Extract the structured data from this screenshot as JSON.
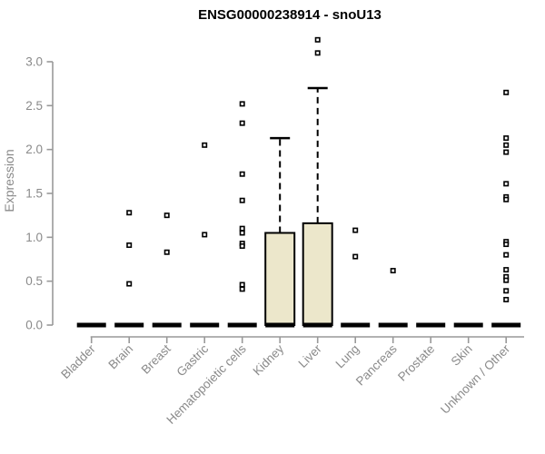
{
  "page": {
    "background_color": "#ffffff"
  },
  "chart_data": {
    "type": "boxplot",
    "title": "ENSG00000238914 - snoU13",
    "ylabel": "Expression",
    "xlabel": "",
    "ylim": [
      0,
      3.3
    ],
    "yticks": [
      "0.0",
      "0.5",
      "1.0",
      "1.5",
      "2.0",
      "2.5",
      "3.0"
    ],
    "grid": false,
    "legend": null,
    "axis_line_color": "#999999",
    "axis_text_color": "#8a8a8a",
    "box_fill_color": "#ECE7CB",
    "box_stroke_color": "#000000",
    "outlier_fill_color": "#ffffff",
    "categories": [
      "Bladder",
      "Brain",
      "Breast",
      "Gastric",
      "Hematopoietic cells",
      "Kidney",
      "Liver",
      "Lung",
      "Pancreas",
      "Prostate",
      "Skin",
      "Unknown / Other"
    ],
    "boxes": [
      {
        "category": "Bladder",
        "q1": 0,
        "median": 0,
        "q3": 0,
        "whisker_low": 0,
        "whisker_high": 0,
        "outliers": []
      },
      {
        "category": "Brain",
        "q1": 0,
        "median": 0,
        "q3": 0,
        "whisker_low": 0,
        "whisker_high": 0,
        "outliers": [
          1.28,
          0.91,
          0.47
        ]
      },
      {
        "category": "Breast",
        "q1": 0,
        "median": 0,
        "q3": 0,
        "whisker_low": 0,
        "whisker_high": 0,
        "outliers": [
          1.25,
          0.83
        ]
      },
      {
        "category": "Gastric",
        "q1": 0,
        "median": 0,
        "q3": 0,
        "whisker_low": 0,
        "whisker_high": 0,
        "outliers": [
          2.05,
          1.03
        ]
      },
      {
        "category": "Hematopoietic cells",
        "q1": 0,
        "median": 0,
        "q3": 0,
        "whisker_low": 0,
        "whisker_high": 0,
        "outliers": [
          2.52,
          2.3,
          1.72,
          1.42,
          1.1,
          1.05,
          0.93,
          0.9,
          0.46,
          0.41
        ]
      },
      {
        "category": "Kidney",
        "q1": 0,
        "median": 0,
        "q3": 1.05,
        "whisker_low": 0,
        "whisker_high": 2.13,
        "outliers": []
      },
      {
        "category": "Liver",
        "q1": 0,
        "median": 0,
        "q3": 1.16,
        "whisker_low": 0,
        "whisker_high": 2.7,
        "outliers": [
          3.25,
          3.1
        ]
      },
      {
        "category": "Lung",
        "q1": 0,
        "median": 0,
        "q3": 0,
        "whisker_low": 0,
        "whisker_high": 0,
        "outliers": [
          1.08,
          0.78
        ]
      },
      {
        "category": "Pancreas",
        "q1": 0,
        "median": 0,
        "q3": 0,
        "whisker_low": 0,
        "whisker_high": 0,
        "outliers": [
          0.62
        ]
      },
      {
        "category": "Prostate",
        "q1": 0,
        "median": 0,
        "q3": 0,
        "whisker_low": 0,
        "whisker_high": 0,
        "outliers": []
      },
      {
        "category": "Skin",
        "q1": 0,
        "median": 0,
        "q3": 0,
        "whisker_low": 0,
        "whisker_high": 0,
        "outliers": []
      },
      {
        "category": "Unknown / Other",
        "q1": 0,
        "median": 0,
        "q3": 0,
        "whisker_low": 0,
        "whisker_high": 0,
        "outliers": [
          2.65,
          2.13,
          2.05,
          1.97,
          1.61,
          1.46,
          1.43,
          0.95,
          0.92,
          0.8,
          0.63,
          0.55,
          0.51,
          0.39,
          0.29
        ]
      }
    ]
  }
}
